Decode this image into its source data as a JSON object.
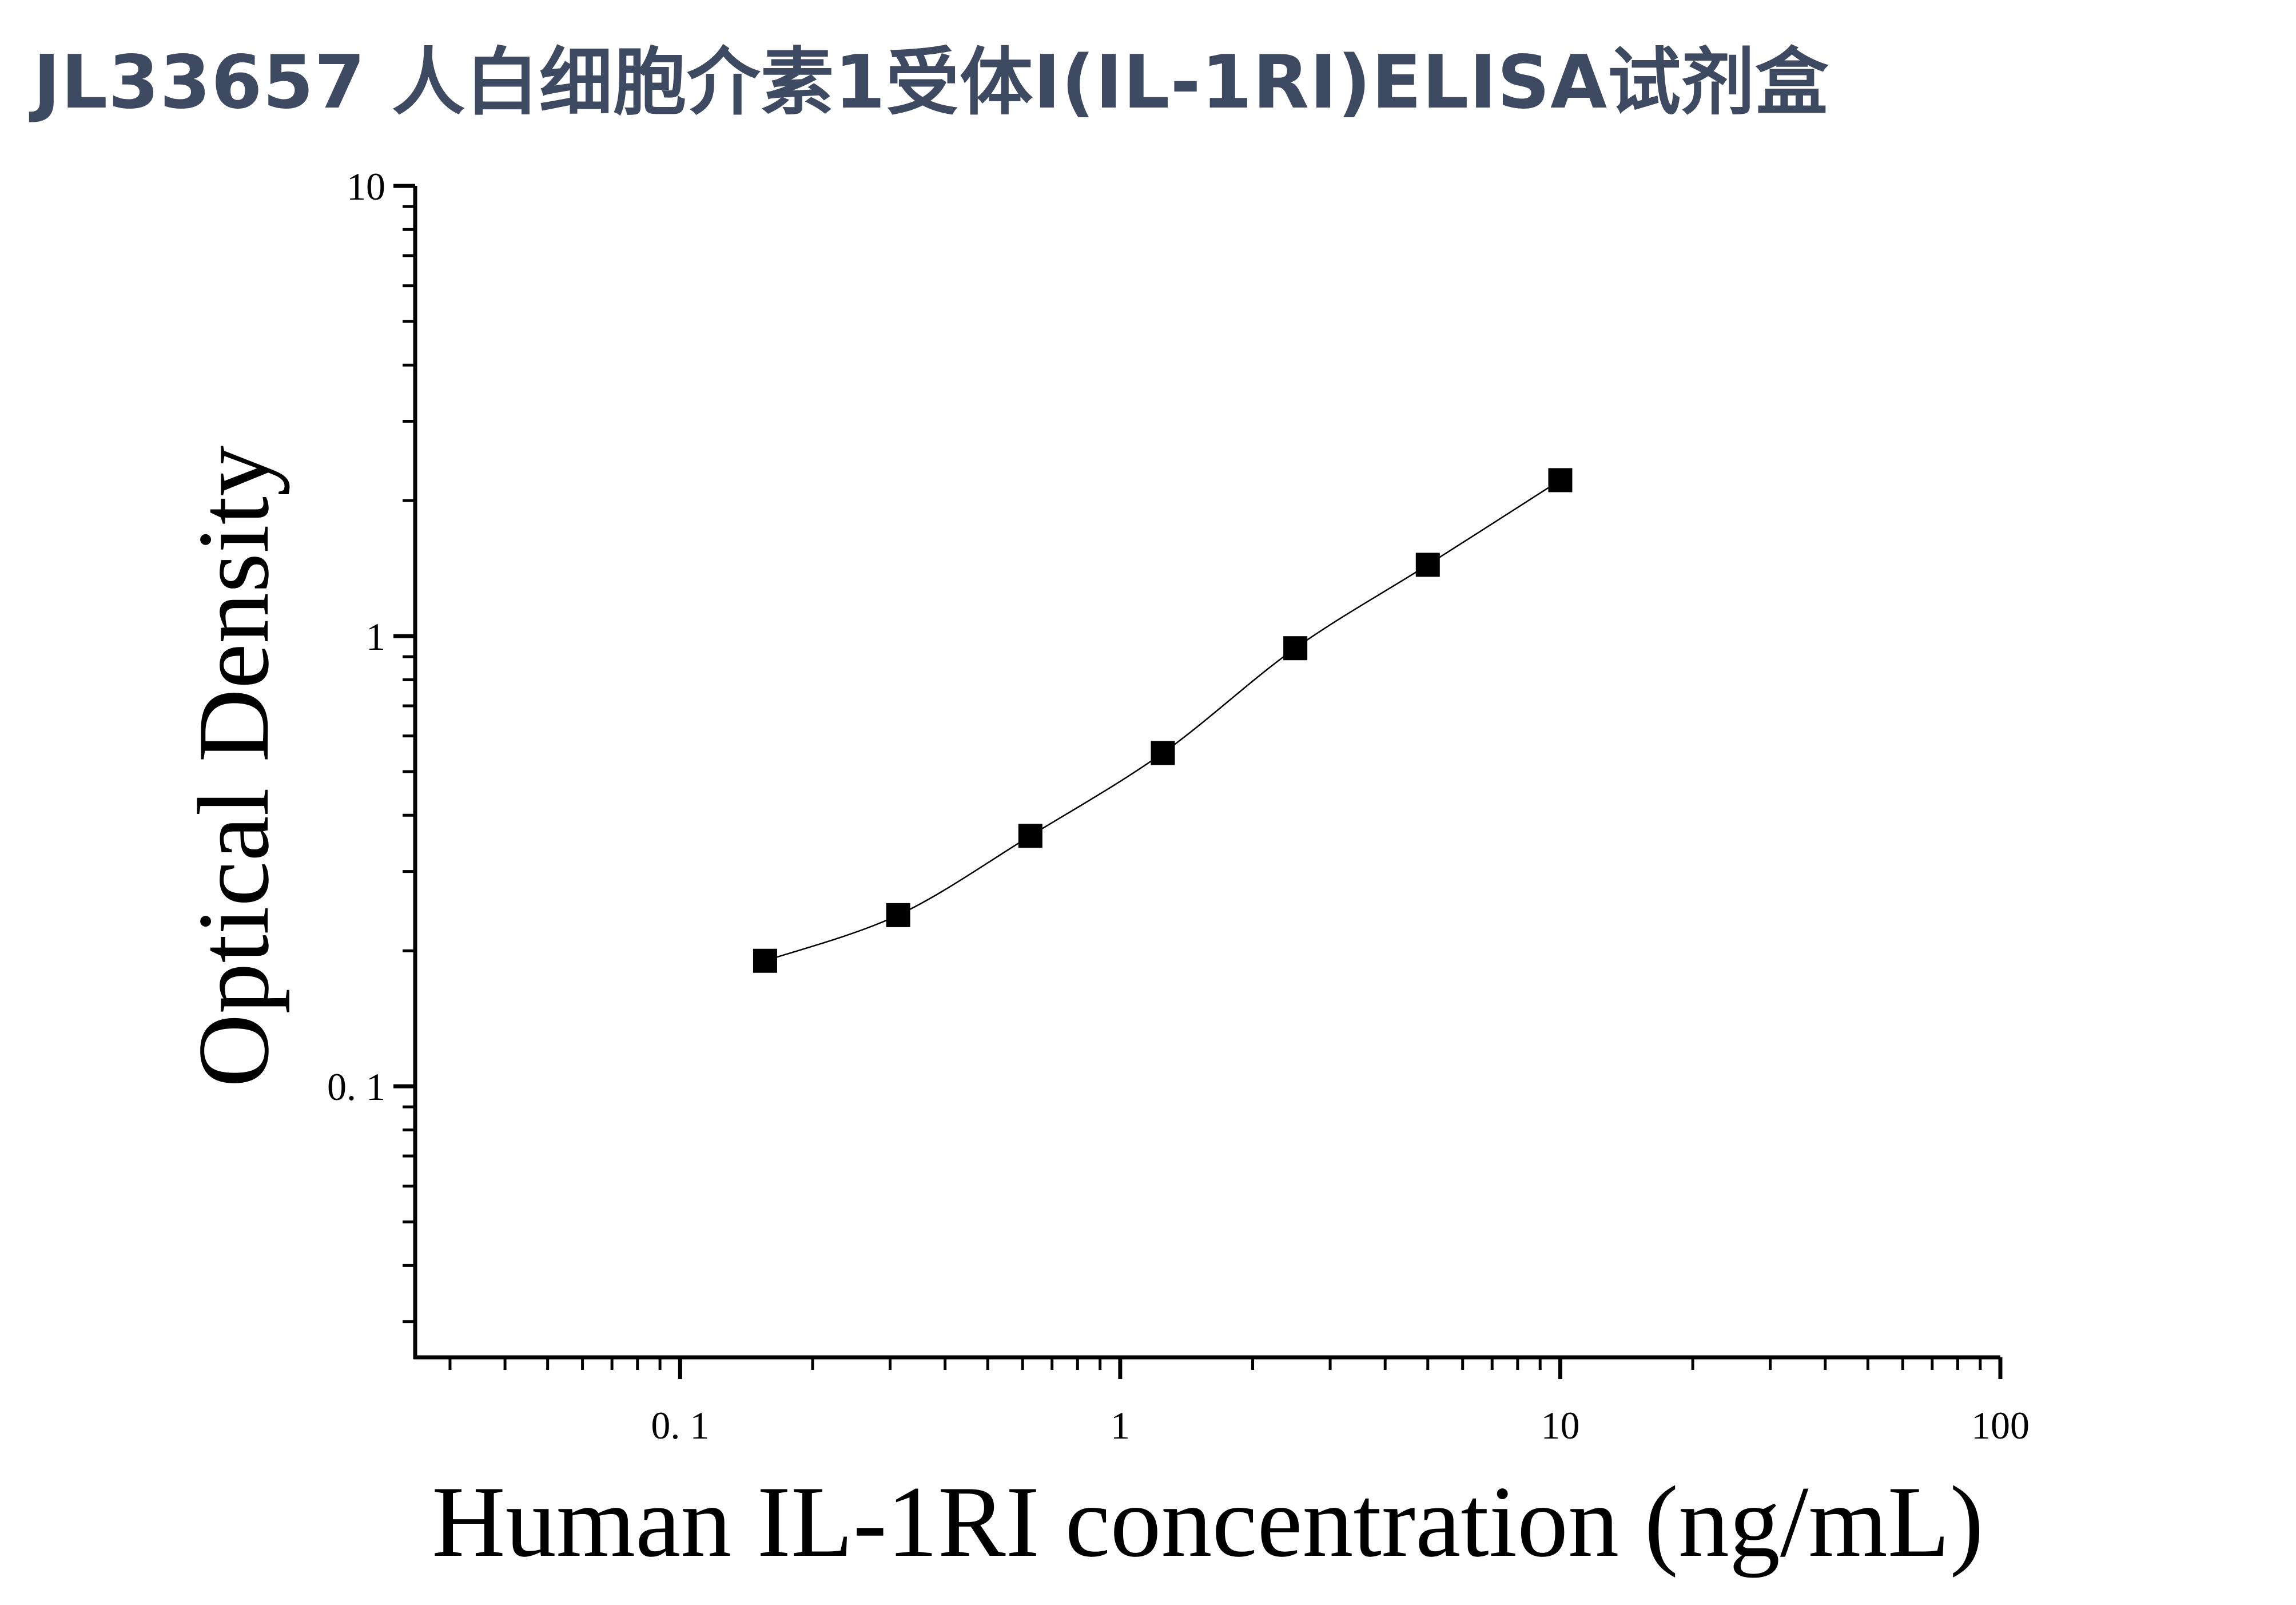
{
  "title": "JL33657 人白细胞介素1受体Ⅰ(IL-1RⅠ)ELISA试剂盒",
  "chart_data": {
    "type": "scatter",
    "xlabel": "Human IL-1RI concentration (ng/mL)",
    "ylabel": "Optical Density",
    "x_scale": "log",
    "y_scale": "log",
    "xlim": [
      0.025,
      100
    ],
    "ylim": [
      0.025,
      10
    ],
    "x_ticks": [
      "0. 1",
      "1",
      "10",
      "100"
    ],
    "x_tick_values": [
      0.1,
      1,
      10,
      100
    ],
    "y_ticks": [
      "10",
      "1",
      "0. 1"
    ],
    "y_tick_values": [
      10,
      1,
      0.1
    ],
    "grid": false,
    "marker": "square",
    "fit_curve": true,
    "x": [
      0.156,
      0.313,
      0.625,
      1.25,
      2.5,
      5,
      10
    ],
    "y": [
      0.19,
      0.24,
      0.36,
      0.55,
      0.94,
      1.44,
      2.22
    ],
    "colors": {
      "marker": "#000000",
      "line": "#000000",
      "title": "#3e4a61"
    }
  }
}
